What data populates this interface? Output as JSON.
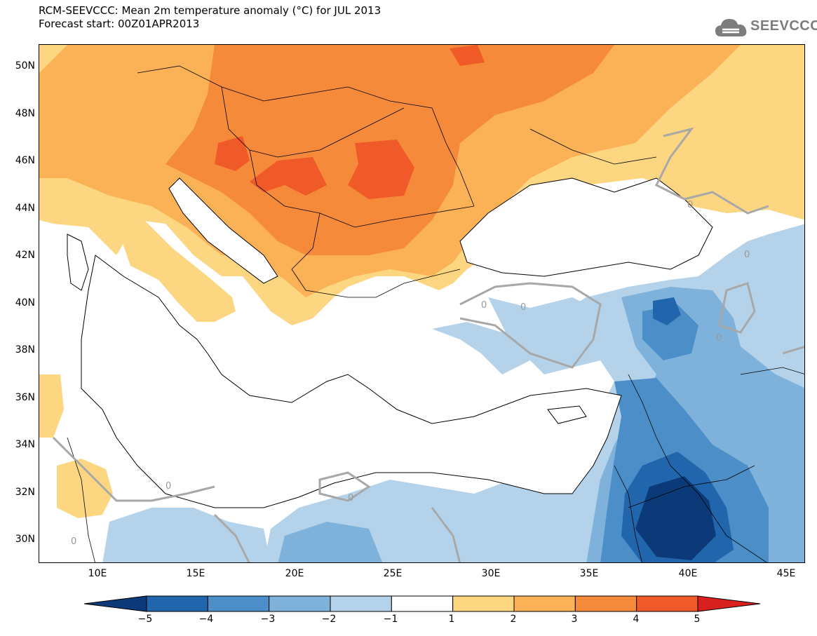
{
  "header": {
    "title_line1": "RCM-SEEVCCC: Mean 2m temperature anomaly (°C) for JUL 2013",
    "title_line2": "Forecast start: 00Z01APR2013"
  },
  "logo": {
    "text": "SEEVCCC",
    "icon": "cloud-logo-icon",
    "color": "#7d7d7d"
  },
  "axes": {
    "lat_labels": [
      "50N",
      "48N",
      "46N",
      "44N",
      "42N",
      "40N",
      "38N",
      "36N",
      "34N",
      "32N",
      "30N"
    ],
    "lon_labels": [
      "10E",
      "15E",
      "20E",
      "25E",
      "30E",
      "35E",
      "40E",
      "45E"
    ],
    "lon_range": [
      7,
      46
    ],
    "lat_range": [
      29,
      51
    ]
  },
  "contour_labels": [
    "0",
    "0",
    "0",
    "0",
    "0",
    "0",
    "0",
    "0"
  ],
  "colorbar": {
    "ticks": [
      "−5",
      "−4",
      "−3",
      "−2",
      "−1",
      "1",
      "2",
      "3",
      "4",
      "5"
    ],
    "colors": [
      "#0c3a78",
      "#2166ac",
      "#4c8fc8",
      "#7fb2da",
      "#b4d3ea",
      "#ffffff",
      "#fcd681",
      "#fbb155",
      "#f58a3a",
      "#f05a28",
      "#d8201e"
    ]
  }
}
